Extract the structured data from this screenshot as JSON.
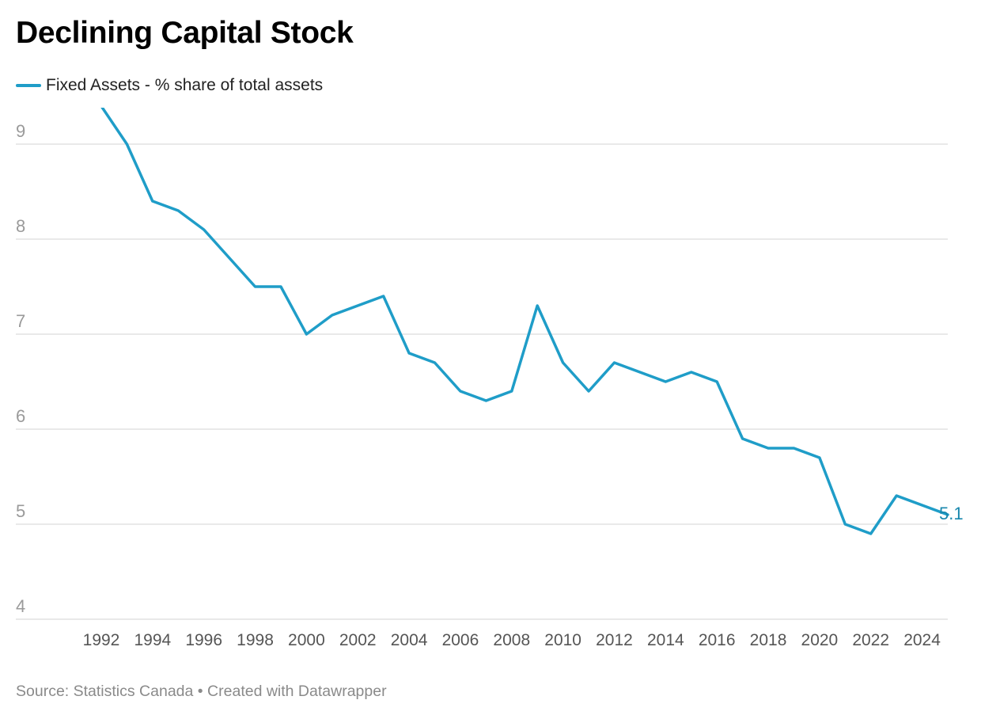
{
  "title": "Declining Capital Stock",
  "footer": {
    "source": "Source: Statistics Canada",
    "separator": " • ",
    "credit": "Created with Datawrapper"
  },
  "colors": {
    "line": "#1f9dc8",
    "end_label": "#1887ad",
    "grid": "#e2e2e2",
    "tick_text": "#9a9a9a",
    "x_tick_text": "#555555"
  },
  "chart_data": {
    "type": "line",
    "title": "Declining Capital Stock",
    "xlabel": "",
    "ylabel": "",
    "x": [
      1992,
      1993,
      1994,
      1995,
      1996,
      1997,
      1998,
      1999,
      2000,
      2001,
      2002,
      2003,
      2004,
      2005,
      2006,
      2007,
      2008,
      2009,
      2010,
      2011,
      2012,
      2013,
      2014,
      2015,
      2016,
      2017,
      2018,
      2019,
      2020,
      2021,
      2022,
      2023,
      2024,
      2025
    ],
    "series": [
      {
        "name": "Fixed Assets - % share of total assets",
        "values": [
          9.4,
          9.0,
          8.4,
          8.3,
          8.1,
          7.8,
          7.5,
          7.5,
          7.0,
          7.2,
          7.3,
          7.4,
          6.8,
          6.7,
          6.4,
          6.3,
          6.4,
          7.3,
          6.7,
          6.4,
          6.7,
          6.6,
          6.5,
          6.6,
          6.5,
          5.9,
          5.8,
          5.8,
          5.7,
          5.0,
          4.9,
          5.3,
          5.2,
          5.1
        ]
      }
    ],
    "end_label": "5.1",
    "y_ticks": [
      "4",
      "5",
      "6",
      "7",
      "8",
      "9"
    ],
    "x_ticks": [
      "1992",
      "1994",
      "1996",
      "1998",
      "2000",
      "2002",
      "2004",
      "2006",
      "2008",
      "2010",
      "2012",
      "2014",
      "2016",
      "2018",
      "2020",
      "2022",
      "2024"
    ],
    "ylim": [
      4,
      9.4
    ],
    "xlim": [
      1992,
      2025
    ],
    "grid": true,
    "legend_position": "top-left"
  }
}
